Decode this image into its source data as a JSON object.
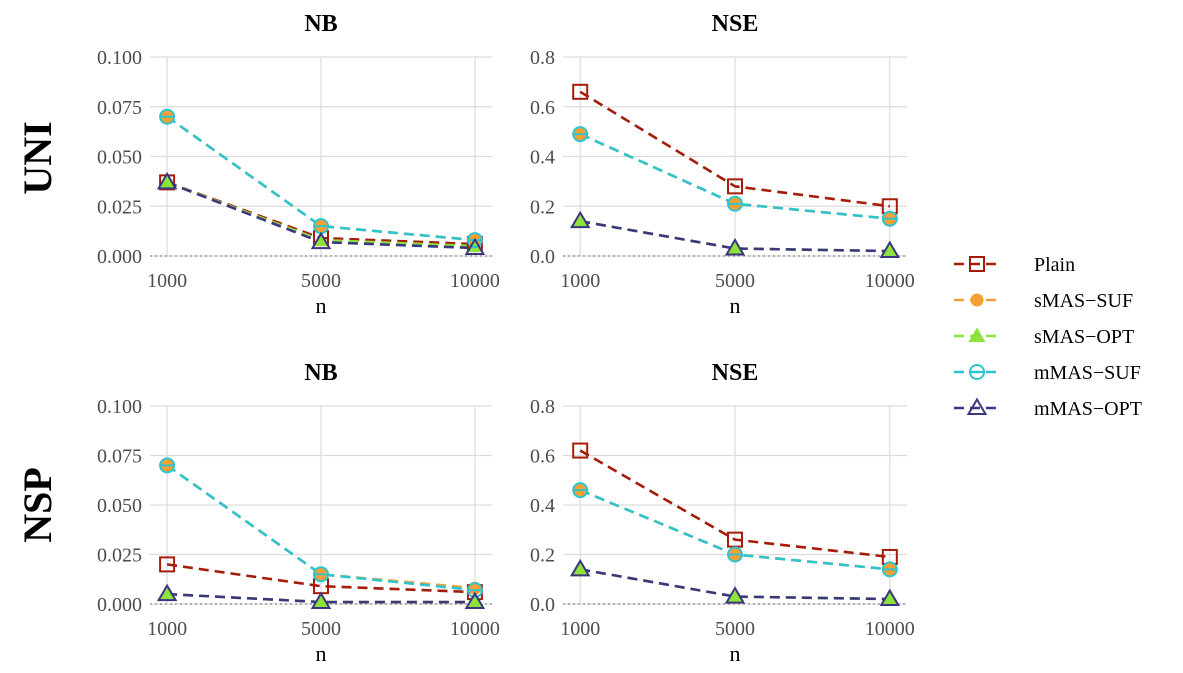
{
  "chart_data": [
    {
      "type": "line",
      "row": "UNI",
      "title": "NB",
      "xlabel": "n",
      "x": [
        1000,
        5000,
        10000
      ],
      "xticks": [
        "1000",
        "5000",
        "10000"
      ],
      "ylim": [
        0,
        0.1
      ],
      "yticks": [
        "0.000",
        "0.025",
        "0.050",
        "0.075",
        "0.100"
      ],
      "series": [
        {
          "name": "Plain",
          "values": [
            0.037,
            0.009,
            0.006
          ]
        },
        {
          "name": "sMAS−SUF",
          "values": [
            0.07,
            0.015,
            0.008
          ]
        },
        {
          "name": "sMAS−OPT",
          "values": [
            0.037,
            0.008,
            0.005
          ]
        },
        {
          "name": "mMAS−SUF",
          "values": [
            0.07,
            0.015,
            0.008
          ]
        },
        {
          "name": "mMAS−OPT",
          "values": [
            0.037,
            0.007,
            0.004
          ]
        }
      ]
    },
    {
      "type": "line",
      "row": "UNI",
      "title": "NSE",
      "xlabel": "n",
      "x": [
        1000,
        5000,
        10000
      ],
      "xticks": [
        "1000",
        "5000",
        "10000"
      ],
      "ylim": [
        0,
        0.8
      ],
      "yticks": [
        "0.0",
        "0.2",
        "0.4",
        "0.6",
        "0.8"
      ],
      "series": [
        {
          "name": "Plain",
          "values": [
            0.66,
            0.28,
            0.2
          ]
        },
        {
          "name": "sMAS−SUF",
          "values": [
            0.49,
            0.21,
            0.15
          ]
        },
        {
          "name": "sMAS−OPT",
          "values": [
            0.14,
            0.03,
            0.02
          ]
        },
        {
          "name": "mMAS−SUF",
          "values": [
            0.49,
            0.21,
            0.15
          ]
        },
        {
          "name": "mMAS−OPT",
          "values": [
            0.14,
            0.03,
            0.02
          ]
        }
      ]
    },
    {
      "type": "line",
      "row": "NSP",
      "title": "NB",
      "xlabel": "n",
      "x": [
        1000,
        5000,
        10000
      ],
      "xticks": [
        "1000",
        "5000",
        "10000"
      ],
      "ylim": [
        0,
        0.1
      ],
      "yticks": [
        "0.000",
        "0.025",
        "0.050",
        "0.075",
        "0.100"
      ],
      "series": [
        {
          "name": "Plain",
          "values": [
            0.02,
            0.009,
            0.006
          ]
        },
        {
          "name": "sMAS−SUF",
          "values": [
            0.07,
            0.015,
            0.008
          ]
        },
        {
          "name": "sMAS−OPT",
          "values": [
            0.005,
            0.001,
            0.001
          ]
        },
        {
          "name": "mMAS−SUF",
          "values": [
            0.07,
            0.015,
            0.007
          ]
        },
        {
          "name": "mMAS−OPT",
          "values": [
            0.005,
            0.001,
            0.001
          ]
        }
      ]
    },
    {
      "type": "line",
      "row": "NSP",
      "title": "NSE",
      "xlabel": "n",
      "x": [
        1000,
        5000,
        10000
      ],
      "xticks": [
        "1000",
        "5000",
        "10000"
      ],
      "ylim": [
        0,
        0.8
      ],
      "yticks": [
        "0.0",
        "0.2",
        "0.4",
        "0.6",
        "0.8"
      ],
      "series": [
        {
          "name": "Plain",
          "values": [
            0.62,
            0.26,
            0.19
          ]
        },
        {
          "name": "sMAS−SUF",
          "values": [
            0.46,
            0.2,
            0.14
          ]
        },
        {
          "name": "sMAS−OPT",
          "values": [
            0.14,
            0.03,
            0.02
          ]
        },
        {
          "name": "mMAS−SUF",
          "values": [
            0.46,
            0.2,
            0.14
          ]
        },
        {
          "name": "mMAS−OPT",
          "values": [
            0.14,
            0.03,
            0.02
          ]
        }
      ]
    }
  ],
  "row_labels": [
    "UNI",
    "NSP"
  ],
  "legend": {
    "position": "right",
    "items": [
      {
        "name": "Plain",
        "color": "#a51c0a",
        "marker": "open-square"
      },
      {
        "name": "sMAS−SUF",
        "color": "#f5a032",
        "marker": "filled-circle"
      },
      {
        "name": "sMAS−OPT",
        "color": "#8ee33a",
        "marker": "filled-triangle"
      },
      {
        "name": "mMAS−SUF",
        "color": "#2ec4cf",
        "marker": "circle-minus"
      },
      {
        "name": "mMAS−OPT",
        "color": "#3b3680",
        "marker": "triangle-outline"
      }
    ]
  }
}
